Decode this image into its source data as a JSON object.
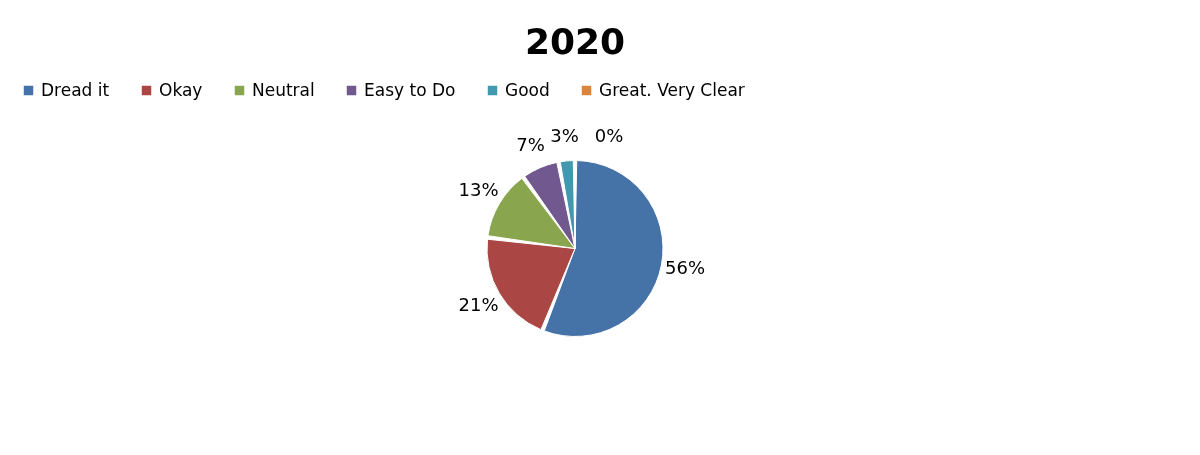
{
  "chart_data": {
    "type": "pie",
    "title": "2020",
    "categories": [
      "Dread it",
      "Okay",
      "Neutral",
      "Easy to Do",
      "Good",
      "Great. Very Clear"
    ],
    "values": [
      56,
      21,
      13,
      7,
      3,
      0
    ],
    "colors": [
      "#4572a7",
      "#aa4643",
      "#89a54e",
      "#71588f",
      "#4198af",
      "#db843d"
    ],
    "value_labels": [
      "56%",
      "21%",
      "13%",
      "7%",
      "3%",
      "0%"
    ],
    "legend": "top"
  }
}
